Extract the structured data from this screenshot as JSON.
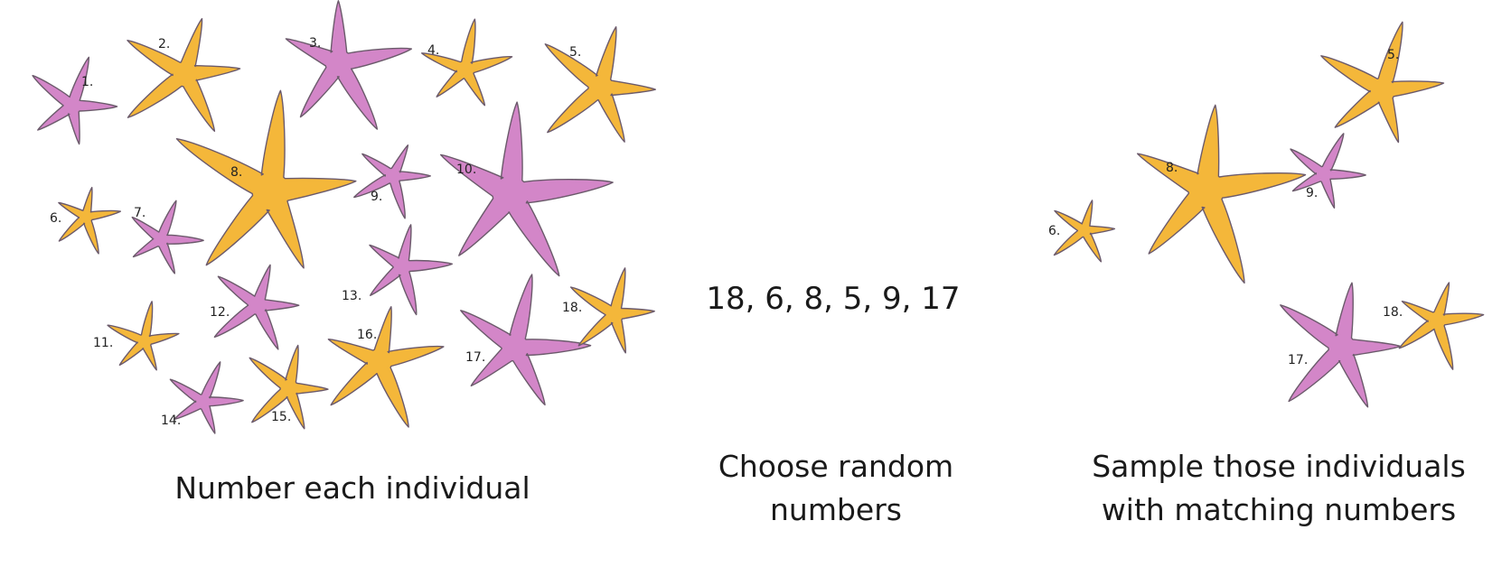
{
  "colors": {
    "pink": "#d386c8",
    "yellow": "#f4b73a"
  },
  "panels": [
    {
      "caption_lines": [
        "Number each individual"
      ],
      "stars": [
        {
          "label": "1.",
          "color": "pink"
        },
        {
          "label": "2.",
          "color": "yellow"
        },
        {
          "label": "3.",
          "color": "pink"
        },
        {
          "label": "4.",
          "color": "yellow"
        },
        {
          "label": "5.",
          "color": "yellow"
        },
        {
          "label": "6.",
          "color": "yellow"
        },
        {
          "label": "7.",
          "color": "pink"
        },
        {
          "label": "8.",
          "color": "yellow"
        },
        {
          "label": "9.",
          "color": "pink"
        },
        {
          "label": "10.",
          "color": "pink"
        },
        {
          "label": "11.",
          "color": "yellow"
        },
        {
          "label": "12.",
          "color": "pink"
        },
        {
          "label": "13.",
          "color": "pink"
        },
        {
          "label": "14.",
          "color": "pink"
        },
        {
          "label": "15.",
          "color": "yellow"
        },
        {
          "label": "16.",
          "color": "yellow"
        },
        {
          "label": "17.",
          "color": "pink"
        },
        {
          "label": "18.",
          "color": "yellow"
        }
      ]
    },
    {
      "numbers_text": "18, 6, 8, 5, 9, 17",
      "caption_lines": [
        "Choose random",
        "numbers"
      ]
    },
    {
      "caption_lines": [
        "Sample those individuals",
        "with matching numbers"
      ],
      "stars": [
        {
          "label": "5.",
          "color": "yellow"
        },
        {
          "label": "6.",
          "color": "yellow"
        },
        {
          "label": "8.",
          "color": "yellow"
        },
        {
          "label": "9.",
          "color": "pink"
        },
        {
          "label": "17.",
          "color": "pink"
        },
        {
          "label": "18.",
          "color": "yellow"
        }
      ]
    }
  ]
}
